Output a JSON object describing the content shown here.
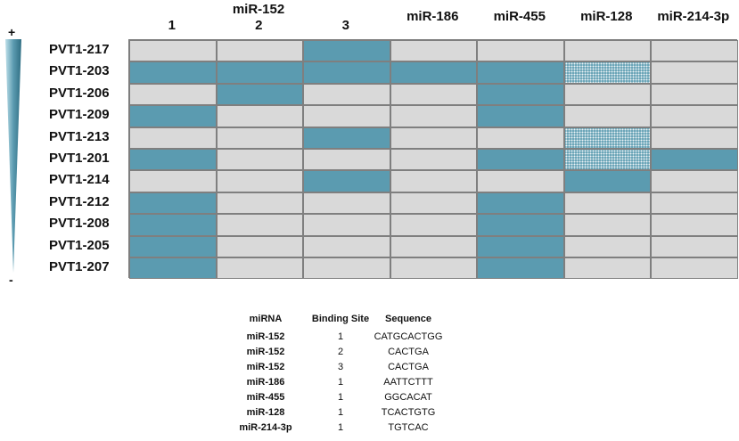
{
  "columns": {
    "group_label": "miR-152",
    "headers": [
      "1",
      "2",
      "3",
      "miR-186",
      "miR-455",
      "miR-128",
      "miR-214-3p"
    ]
  },
  "rows": [
    {
      "label": "PVT1-217",
      "cells": [
        "empty",
        "empty",
        "filled",
        "empty",
        "empty",
        "empty",
        "empty"
      ]
    },
    {
      "label": "PVT1-203",
      "cells": [
        "filled",
        "filled",
        "filled",
        "filled",
        "filled",
        "dotted",
        "empty"
      ]
    },
    {
      "label": "PVT1-206",
      "cells": [
        "empty",
        "filled",
        "empty",
        "empty",
        "filled",
        "empty",
        "empty"
      ]
    },
    {
      "label": "PVT1-209",
      "cells": [
        "filled",
        "empty",
        "empty",
        "empty",
        "filled",
        "empty",
        "empty"
      ]
    },
    {
      "label": "PVT1-213",
      "cells": [
        "empty",
        "empty",
        "filled",
        "empty",
        "empty",
        "dotted",
        "empty"
      ]
    },
    {
      "label": "PVT1-201",
      "cells": [
        "filled",
        "empty",
        "empty",
        "empty",
        "filled",
        "dotted",
        "filled"
      ]
    },
    {
      "label": "PVT1-214",
      "cells": [
        "empty",
        "empty",
        "filled",
        "empty",
        "empty",
        "filled",
        "empty"
      ]
    },
    {
      "label": "PVT1-212",
      "cells": [
        "filled",
        "empty",
        "empty",
        "empty",
        "filled",
        "empty",
        "empty"
      ]
    },
    {
      "label": "PVT1-208",
      "cells": [
        "filled",
        "empty",
        "empty",
        "empty",
        "filled",
        "empty",
        "empty"
      ]
    },
    {
      "label": "PVT1-205",
      "cells": [
        "filled",
        "empty",
        "empty",
        "empty",
        "filled",
        "empty",
        "empty"
      ]
    },
    {
      "label": "PVT1-207",
      "cells": [
        "filled",
        "empty",
        "empty",
        "empty",
        "filled",
        "empty",
        "empty"
      ]
    }
  ],
  "scale": {
    "plus": "+",
    "minus": "-"
  },
  "colors": {
    "filled": "#5b9bb0",
    "empty": "#d9d9d9"
  },
  "binding_table": {
    "headers": [
      "miRNA",
      "Binding Site",
      "Sequence"
    ],
    "rows": [
      [
        "miR-152",
        "1",
        "CATGCACTGG"
      ],
      [
        "miR-152",
        "2",
        "CACTGA"
      ],
      [
        "miR-152",
        "3",
        "CACTGA"
      ],
      [
        "miR-186",
        "1",
        "AATTCTTT"
      ],
      [
        "miR-455",
        "1",
        "GGCACAT"
      ],
      [
        "miR-128",
        "1",
        "TCACTGTG"
      ],
      [
        "miR-214-3p",
        "1",
        "TGTCAC"
      ]
    ]
  }
}
